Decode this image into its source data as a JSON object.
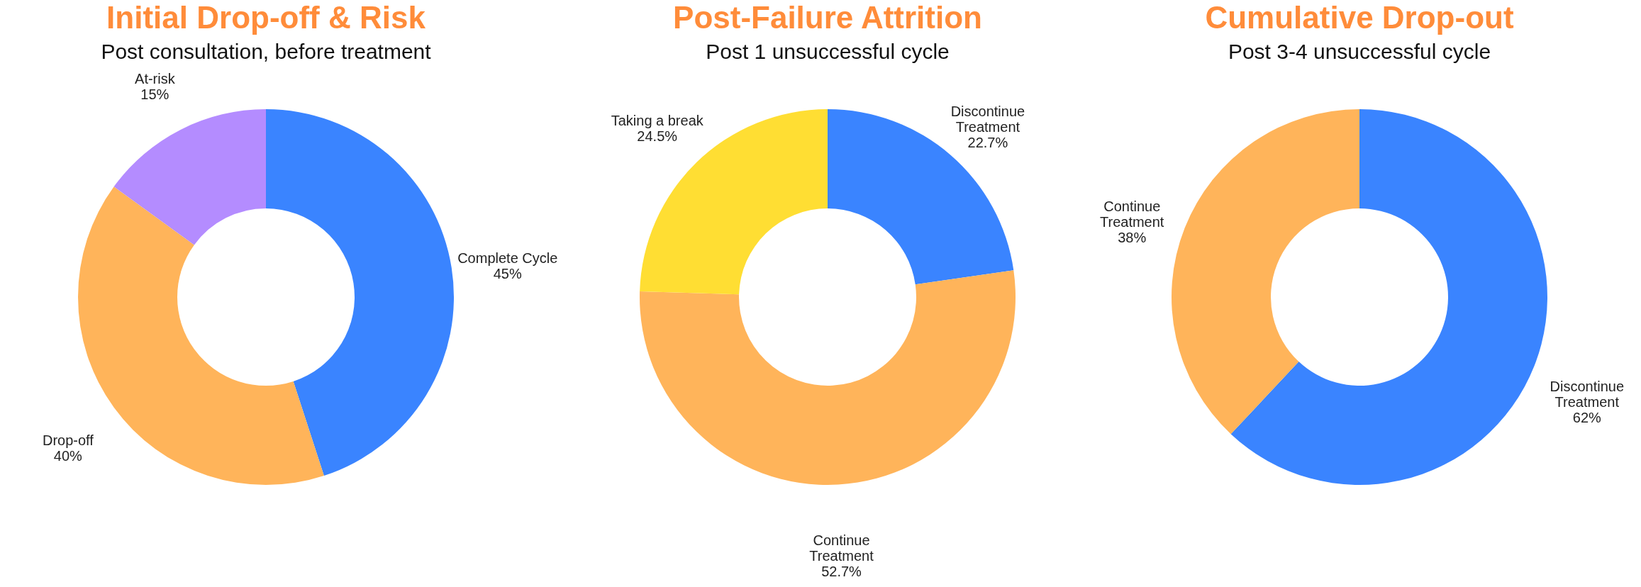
{
  "chart_data": [
    {
      "type": "donut",
      "title": "Initial Drop-off & Risk",
      "subtitle": "Post consultation, before treatment",
      "categories": [
        "Complete Cycle",
        "Drop-off",
        "At-risk"
      ],
      "values": [
        45,
        40,
        15
      ],
      "colors": [
        "#3a84ff",
        "#ffb45a",
        "#b48cff"
      ],
      "value_labels": [
        "45%",
        "40%",
        "15%"
      ],
      "legend": false
    },
    {
      "type": "donut",
      "title": "Post-Failure Attrition",
      "subtitle": "Post 1 unsuccessful cycle",
      "categories": [
        "Discontinue Treatment",
        "Continue Treatment",
        "Taking a break"
      ],
      "values": [
        22.7,
        52.7,
        24.5
      ],
      "colors": [
        "#3a84ff",
        "#ffb45a",
        "#ffde33"
      ],
      "value_labels": [
        "22.7%",
        "52.7%",
        "24.5%"
      ],
      "legend": false
    },
    {
      "type": "donut",
      "title": "Cumulative Drop-out",
      "subtitle": "Post 3-4 unsuccessful cycle",
      "categories": [
        "Discontinue Treatment",
        "Continue Treatment"
      ],
      "values": [
        62,
        38
      ],
      "colors": [
        "#3a84ff",
        "#ffb45a"
      ],
      "value_labels": [
        "62%",
        "38%"
      ],
      "legend": false
    }
  ]
}
